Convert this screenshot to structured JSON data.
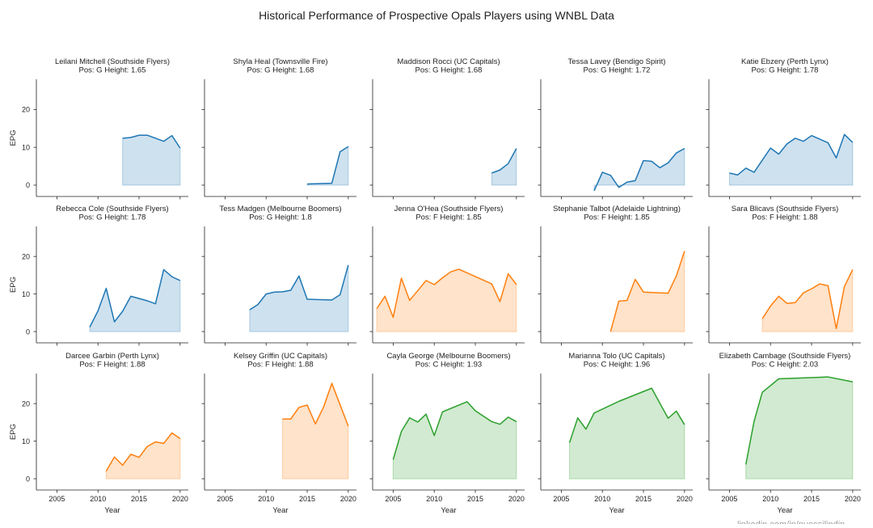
{
  "chart_data": {
    "type": "area",
    "title": "Historical Performance of Prospective Opals Players using WNBL Data",
    "xlabel": "Year",
    "ylabel": "EPG",
    "xlim": [
      2002.5,
      2021
    ],
    "ylim": [
      -3,
      28
    ],
    "xticks": [
      2005,
      2010,
      2015,
      2020
    ],
    "yticks": [
      0,
      10,
      20
    ],
    "grid": false,
    "colors": {
      "G": "#1f77b4",
      "F": "#ff7f0e",
      "C": "#2ca02c"
    },
    "watermark": "linkedin.com/in/nuessilindin",
    "panels": [
      {
        "title": "Leilani Mitchell (Southside Flyers)\nPos: G  Height: 1.65",
        "pos": "G",
        "x": [
          2013,
          2014,
          2015,
          2016,
          2018,
          2019,
          2020
        ],
        "y": [
          12.4,
          12.6,
          13.2,
          13.2,
          11.6,
          13.1,
          9.8
        ]
      },
      {
        "title": "Shyla Heal (Townsville Fire)\nPos: G  Height: 1.68",
        "pos": "G",
        "x": [
          2015,
          2018,
          2019,
          2020
        ],
        "y": [
          0.3,
          0.5,
          8.8,
          10.2
        ]
      },
      {
        "title": "Maddison Rocci (UC Capitals)\nPos: G  Height: 1.68",
        "pos": "G",
        "x": [
          2017,
          2018,
          2019,
          2020
        ],
        "y": [
          3.2,
          4.0,
          5.7,
          9.7
        ]
      },
      {
        "title": "Tessa Lavey (Bendigo Spirit)\nPos: G  Height: 1.72",
        "pos": "G",
        "x": [
          2009,
          2010,
          2011,
          2012,
          2013,
          2014,
          2015,
          2016,
          2017,
          2018,
          2019,
          2020
        ],
        "y": [
          -1.5,
          3.4,
          2.6,
          -0.6,
          0.8,
          1.2,
          6.5,
          6.3,
          4.6,
          5.9,
          8.5,
          9.7
        ]
      },
      {
        "title": "Katie Ebzery (Perth Lynx)\nPos: G  Height: 1.78",
        "pos": "G",
        "x": [
          2005,
          2006,
          2007,
          2008,
          2009,
          2010,
          2011,
          2012,
          2013,
          2014,
          2015,
          2017,
          2018,
          2019,
          2020
        ],
        "y": [
          3.2,
          2.7,
          4.5,
          3.4,
          6.6,
          9.8,
          8.2,
          10.9,
          12.4,
          11.6,
          13.1,
          11.2,
          7.2,
          13.4,
          11.3
        ]
      },
      {
        "title": "Rebecca Cole (Southside Flyers)\nPos: G  Height: 1.78",
        "pos": "G",
        "x": [
          2009,
          2010,
          2011,
          2012,
          2013,
          2014,
          2016,
          2017,
          2018,
          2019,
          2020
        ],
        "y": [
          1.2,
          5.5,
          11.5,
          2.6,
          5.4,
          9.4,
          8.2,
          7.4,
          16.5,
          14.6,
          13.6
        ]
      },
      {
        "title": "Tess Madgen (Melbourne Boomers)\nPos: G  Height: 1.8",
        "pos": "G",
        "x": [
          2008,
          2009,
          2010,
          2011,
          2012,
          2013,
          2014,
          2015,
          2018,
          2019,
          2020
        ],
        "y": [
          5.8,
          7.2,
          10.0,
          10.5,
          10.6,
          11.0,
          14.8,
          8.6,
          8.4,
          9.8,
          17.7
        ]
      },
      {
        "title": "Jenna O'Hea (Southside Flyers)\nPos: F  Height: 1.85",
        "pos": "F",
        "x": [
          2003,
          2004,
          2005,
          2006,
          2007,
          2008,
          2009,
          2010,
          2011,
          2012,
          2013,
          2017,
          2018,
          2019,
          2020
        ],
        "y": [
          6.1,
          9.4,
          3.8,
          14.2,
          8.3,
          10.9,
          13.6,
          12.5,
          14.3,
          15.9,
          16.6,
          12.7,
          8.0,
          15.4,
          12.5
        ]
      },
      {
        "title": "Stephanie Talbot (Adelaide Lightning)\nPos: F  Height: 1.85",
        "pos": "F",
        "x": [
          2011,
          2012,
          2013,
          2014,
          2015,
          2018,
          2019,
          2020
        ],
        "y": [
          0.0,
          8.1,
          8.3,
          13.9,
          10.5,
          10.2,
          14.8,
          21.4
        ]
      },
      {
        "title": "Sara Blicavs (Southside Flyers)\nPos: F  Height: 1.88",
        "pos": "F",
        "x": [
          2009,
          2010,
          2011,
          2012,
          2013,
          2014,
          2015,
          2016,
          2017,
          2018,
          2019,
          2020
        ],
        "y": [
          3.4,
          6.8,
          9.4,
          7.5,
          7.7,
          10.3,
          11.4,
          12.7,
          12.2,
          0.8,
          12.0,
          16.5
        ]
      },
      {
        "title": "Darcee Garbin (Perth Lynx)\nPos: F  Height: 1.88",
        "pos": "F",
        "x": [
          2011,
          2012,
          2013,
          2014,
          2015,
          2016,
          2017,
          2018,
          2019,
          2020
        ],
        "y": [
          2.0,
          5.8,
          3.6,
          6.5,
          5.7,
          8.6,
          9.8,
          9.4,
          12.2,
          10.7
        ]
      },
      {
        "title": "Kelsey Griffin (UC Capitals)\nPos: F  Height: 1.88",
        "pos": "F",
        "x": [
          2012,
          2013,
          2014,
          2015,
          2016,
          2017,
          2018,
          2020
        ],
        "y": [
          15.9,
          15.9,
          19.0,
          19.6,
          14.6,
          19.1,
          25.4,
          14.0
        ]
      },
      {
        "title": "Cayla George (Melbourne Boomers)\nPos: C  Height: 1.93",
        "pos": "C",
        "x": [
          2005,
          2006,
          2007,
          2008,
          2009,
          2010,
          2011,
          2014,
          2015,
          2017,
          2018,
          2019,
          2020
        ],
        "y": [
          5.1,
          12.6,
          16.2,
          15.1,
          17.2,
          11.5,
          17.8,
          20.5,
          18.1,
          15.2,
          14.5,
          16.4,
          15.2
        ]
      },
      {
        "title": "Marianna Tolo (UC Capitals)\nPos: C  Height: 1.96",
        "pos": "C",
        "x": [
          2006,
          2007,
          2008,
          2009,
          2012,
          2016,
          2018,
          2019,
          2020
        ],
        "y": [
          9.6,
          16.2,
          13.2,
          17.5,
          20.6,
          24.1,
          16.1,
          18.0,
          14.4
        ]
      },
      {
        "title": "Elizabeth Cambage (Southside Flyers)\nPos: C  Height: 2.03",
        "pos": "C",
        "x": [
          2007,
          2008,
          2009,
          2011,
          2017,
          2020
        ],
        "y": [
          3.8,
          15.3,
          23.0,
          26.6,
          27.1,
          25.8
        ]
      }
    ]
  }
}
